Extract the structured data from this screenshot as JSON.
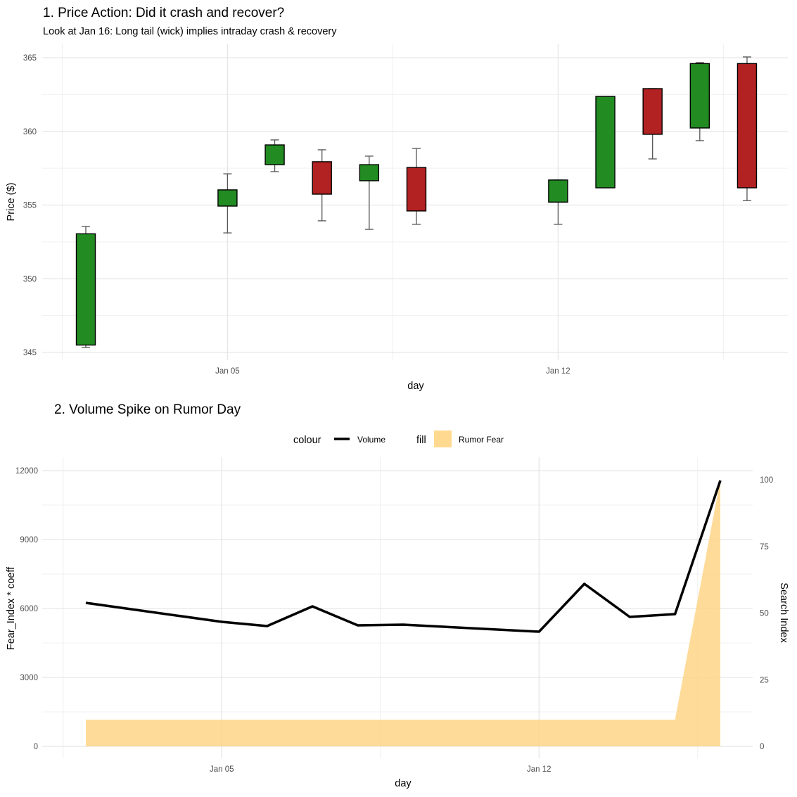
{
  "chart_data": [
    {
      "type": "candlestick",
      "title": "1. Price Action: Did it crash and recover?",
      "subtitle": "Look at Jan 16: Long tail (wick) implies intraday crash & recovery",
      "xlabel": "day",
      "ylabel": "Price ($)",
      "ylim": [
        344.5,
        365.9
      ],
      "yticks": [
        345,
        350,
        355,
        360,
        365
      ],
      "xticks": [
        {
          "day": 3,
          "label": "Jan 05"
        },
        {
          "day": 10,
          "label": "Jan 12"
        }
      ],
      "colors": {
        "up": "#228B22",
        "down": "#B22222"
      },
      "candles": [
        {
          "date": "Jan 02",
          "day": 0,
          "open": 345.5,
          "high": 353.55,
          "low": 345.33,
          "close": 353.05
        },
        {
          "date": "Jan 05",
          "day": 3,
          "open": 354.93,
          "high": 357.12,
          "low": 353.11,
          "close": 356.03
        },
        {
          "date": "Jan 06",
          "day": 4,
          "open": 357.74,
          "high": 359.42,
          "low": 357.27,
          "close": 359.08
        },
        {
          "date": "Jan 07",
          "day": 5,
          "open": 357.94,
          "high": 358.75,
          "low": 353.93,
          "close": 355.74
        },
        {
          "date": "Jan 08",
          "day": 6,
          "open": 356.65,
          "high": 358.32,
          "low": 353.35,
          "close": 357.74
        },
        {
          "date": "Jan 09",
          "day": 7,
          "open": 357.55,
          "high": 358.84,
          "low": 353.69,
          "close": 354.6
        },
        {
          "date": "Jan 12",
          "day": 10,
          "open": 355.2,
          "high": 356.7,
          "low": 353.69,
          "close": 356.7
        },
        {
          "date": "Jan 13",
          "day": 11,
          "open": 356.17,
          "high": 362.37,
          "low": 356.17,
          "close": 362.37
        },
        {
          "date": "Jan 14",
          "day": 12,
          "open": 362.9,
          "high": 362.9,
          "low": 358.13,
          "close": 359.8
        },
        {
          "date": "Jan 15",
          "day": 13,
          "open": 360.23,
          "high": 364.67,
          "low": 359.37,
          "close": 364.6
        },
        {
          "date": "Jan 16",
          "day": 14,
          "open": 364.6,
          "high": 365.05,
          "low": 355.3,
          "close": 356.17
        }
      ]
    },
    {
      "type": "line+area",
      "title": "2. Volume Spike on Rumor Day",
      "xlabel": "day",
      "ylabel": "Fear_Index * coeff",
      "ylabel_right": "Search Index",
      "yticks": [
        0,
        3000,
        6000,
        9000,
        12000
      ],
      "yticks_right": [
        0,
        25,
        50,
        75,
        100
      ],
      "xticks": [
        {
          "day": 3,
          "label": "Jan 05"
        },
        {
          "day": 10,
          "label": "Jan 12"
        }
      ],
      "legend": {
        "colour_title": "colour",
        "colour_label": "Volume",
        "fill_title": "fill",
        "fill_label": "Rumor Fear",
        "position": "top"
      },
      "colors": {
        "line": "#000000",
        "fill": "#FFD27F"
      },
      "volume": [
        {
          "day": 0,
          "value": 6245
        },
        {
          "day": 3,
          "value": 5418
        },
        {
          "day": 4,
          "value": 5235
        },
        {
          "day": 5,
          "value": 6092
        },
        {
          "day": 6,
          "value": 5265
        },
        {
          "day": 7,
          "value": 5296
        },
        {
          "day": 10,
          "value": 4990
        },
        {
          "day": 11,
          "value": 7071
        },
        {
          "day": 12,
          "value": 5633
        },
        {
          "day": 13,
          "value": 5755
        },
        {
          "day": 14,
          "value": 11571
        }
      ],
      "search_index": [
        {
          "day": 0,
          "value": 10
        },
        {
          "day": 3,
          "value": 10
        },
        {
          "day": 4,
          "value": 10
        },
        {
          "day": 5,
          "value": 10
        },
        {
          "day": 6,
          "value": 10
        },
        {
          "day": 7,
          "value": 10
        },
        {
          "day": 10,
          "value": 10
        },
        {
          "day": 11,
          "value": 10
        },
        {
          "day": 12,
          "value": 10
        },
        {
          "day": 13,
          "value": 10
        },
        {
          "day": 14,
          "value": 100
        }
      ]
    }
  ]
}
